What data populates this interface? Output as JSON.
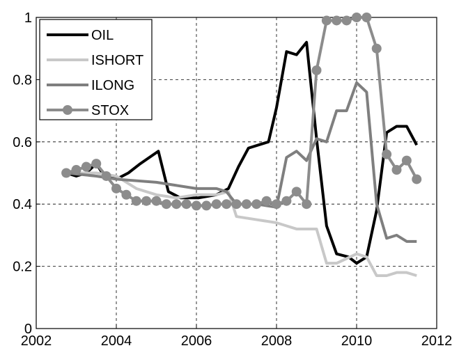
{
  "chart_data": {
    "type": "line",
    "xlim": [
      2002,
      2012
    ],
    "xticks": [
      2002,
      2004,
      2006,
      2008,
      2010,
      2012
    ],
    "ylim": [
      0,
      1
    ],
    "yticks": [
      0,
      0.2,
      0.4,
      0.6,
      0.8,
      1
    ],
    "grid": true,
    "legend": "upper-left",
    "series": [
      {
        "name": "OIL",
        "color": "#000000",
        "marker": "none",
        "x": [
          2002.75,
          2003.0,
          2003.25,
          2003.5,
          2003.7,
          2004.0,
          2004.3,
          2004.6,
          2005.05,
          2005.3,
          2005.6,
          2006.05,
          2006.5,
          2006.8,
          2007.05,
          2007.3,
          2007.8,
          2008.0,
          2008.25,
          2008.5,
          2008.75,
          2009.0,
          2009.25,
          2009.5,
          2009.8,
          2010.0,
          2010.25,
          2010.5,
          2010.75,
          2011.0,
          2011.25,
          2011.5
        ],
        "values": [
          0.5,
          0.49,
          0.5,
          0.53,
          0.49,
          0.48,
          0.5,
          0.53,
          0.57,
          0.44,
          0.42,
          0.42,
          0.43,
          0.45,
          0.52,
          0.58,
          0.6,
          0.71,
          0.89,
          0.88,
          0.92,
          0.61,
          0.33,
          0.24,
          0.23,
          0.21,
          0.23,
          0.38,
          0.63,
          0.65,
          0.65,
          0.59
        ]
      },
      {
        "name": "ISHORT",
        "color": "#c8c8c8",
        "marker": "none",
        "x": [
          2002.75,
          2003.5,
          2004.0,
          2004.5,
          2005.0,
          2005.5,
          2006.0,
          2006.5,
          2006.8,
          2007.0,
          2007.5,
          2008.0,
          2008.25,
          2008.5,
          2009.0,
          2009.25,
          2009.5,
          2010.0,
          2010.25,
          2010.5,
          2010.75,
          2011.0,
          2011.25,
          2011.5
        ],
        "values": [
          0.5,
          0.5,
          0.49,
          0.45,
          0.43,
          0.42,
          0.43,
          0.43,
          0.44,
          0.36,
          0.35,
          0.34,
          0.33,
          0.32,
          0.32,
          0.21,
          0.21,
          0.24,
          0.23,
          0.17,
          0.17,
          0.18,
          0.18,
          0.17
        ]
      },
      {
        "name": "ILONG",
        "color": "#7f7f7f",
        "marker": "none",
        "x": [
          2002.75,
          2003.5,
          2004.0,
          2005.0,
          2005.5,
          2006.0,
          2006.5,
          2006.75,
          2007.0,
          2007.5,
          2008.0,
          2008.25,
          2008.5,
          2008.75,
          2009.0,
          2009.25,
          2009.5,
          2009.75,
          2010.0,
          2010.25,
          2010.5,
          2010.75,
          2011.0,
          2011.25,
          2011.5
        ],
        "values": [
          0.5,
          0.49,
          0.48,
          0.47,
          0.46,
          0.45,
          0.45,
          0.44,
          0.4,
          0.4,
          0.39,
          0.55,
          0.57,
          0.54,
          0.61,
          0.6,
          0.7,
          0.7,
          0.79,
          0.76,
          0.4,
          0.29,
          0.3,
          0.28,
          0.28
        ]
      },
      {
        "name": "STOX",
        "color": "#8c8c8c",
        "marker": "circle",
        "x": [
          2002.75,
          2003.0,
          2003.25,
          2003.5,
          2003.75,
          2004.0,
          2004.25,
          2004.5,
          2004.75,
          2005.0,
          2005.25,
          2005.5,
          2005.75,
          2006.0,
          2006.25,
          2006.5,
          2006.75,
          2007.0,
          2007.25,
          2007.5,
          2007.75,
          2008.0,
          2008.25,
          2008.5,
          2008.75,
          2009.0,
          2009.25,
          2009.5,
          2009.75,
          2010.0,
          2010.25,
          2010.5,
          2010.75,
          2011.0,
          2011.25,
          2011.5
        ],
        "values": [
          0.5,
          0.51,
          0.52,
          0.53,
          0.49,
          0.45,
          0.43,
          0.41,
          0.41,
          0.41,
          0.4,
          0.4,
          0.4,
          0.395,
          0.395,
          0.4,
          0.4,
          0.4,
          0.4,
          0.4,
          0.41,
          0.4,
          0.41,
          0.44,
          0.4,
          0.83,
          0.99,
          0.99,
          0.99,
          1.0,
          1.0,
          0.9,
          0.56,
          0.51,
          0.54,
          0.48
        ]
      }
    ]
  }
}
